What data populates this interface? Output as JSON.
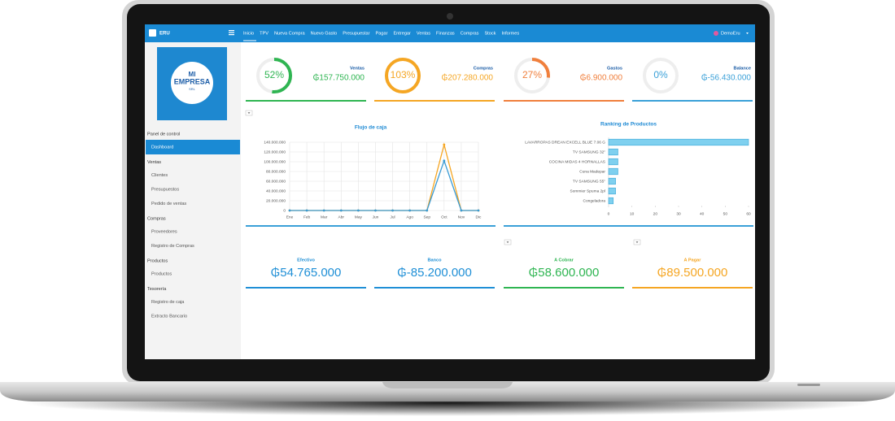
{
  "app": {
    "brand": "ERU",
    "nav": [
      "Inicio",
      "TPV",
      "Nueva Compra",
      "Nuevo Gasto",
      "Presupuestar",
      "Pagar",
      "Entregar",
      "Ventas",
      "Finanzas",
      "Compras",
      "Stock",
      "Informes"
    ],
    "user": "DemoEru"
  },
  "logo": {
    "line1": "MI",
    "line2": "EMPRESA",
    "line3": "SRL"
  },
  "sidebar": {
    "sections": [
      {
        "title": "Panel de control",
        "items": [
          "Dashboard"
        ]
      },
      {
        "title": "Ventas",
        "items": [
          "Clientes",
          "Presupuestos",
          "Pedido de ventas"
        ]
      },
      {
        "title": "Compras",
        "items": [
          "Proveedores",
          "Registro de Compras"
        ]
      },
      {
        "title": "Productos",
        "items": [
          "Productos"
        ]
      },
      {
        "title": "Tesorería",
        "items": [
          "Registro de caja",
          "Extracto Bancario"
        ]
      }
    ]
  },
  "kpis": [
    {
      "label": "Ventas",
      "percent": 52,
      "percent_label": "52%",
      "amount": "₲157.750.000",
      "color": "#2fb552"
    },
    {
      "label": "Compras",
      "percent": 103,
      "percent_label": "103%",
      "amount": "₲207.280.000",
      "color": "#f5a623"
    },
    {
      "label": "Gastos",
      "percent": 27,
      "percent_label": "27%",
      "amount": "₲6.900.000",
      "color": "#f07f3c"
    },
    {
      "label": "Balance",
      "percent": 0,
      "percent_label": "0%",
      "amount": "₲-56.430.000",
      "color": "#3aa0d8"
    }
  ],
  "chart_data": [
    {
      "type": "line",
      "title": "Flujo de caja",
      "categories": [
        "Ene",
        "Feb",
        "Mar",
        "Abr",
        "May",
        "Jun",
        "Jul",
        "Ago",
        "Sep",
        "Oct",
        "Nov",
        "Dic"
      ],
      "series": [
        {
          "color": "#f5a623",
          "values": [
            0,
            0,
            0,
            0,
            0,
            0,
            0,
            0,
            0,
            135000000,
            0,
            0
          ]
        },
        {
          "color": "#3a9bd5",
          "values": [
            0,
            0,
            0,
            0,
            0,
            0,
            0,
            0,
            0,
            102000000,
            0,
            0
          ]
        }
      ],
      "ylim": [
        0,
        140000000
      ],
      "yticks": [
        0,
        {
          "value": 20000000,
          "label": "20.000.000"
        },
        {
          "value": 40000000,
          "label": "40.000.000"
        },
        {
          "value": 60000000,
          "label": "60.000.000"
        },
        {
          "value": 80000000,
          "label": "80.000.000"
        },
        {
          "value": 100000000,
          "label": "100.000.000"
        },
        {
          "value": 120000000,
          "label": "120.000.000"
        },
        {
          "value": 140000000,
          "label": "140.000.000"
        }
      ],
      "grid": true
    },
    {
      "type": "hbar",
      "title": "Ranking de Productos",
      "categories": [
        "LAVARROPAS DREAN EXCELL BLUE 7.06 G",
        "TV SAMSUNG 32\"",
        "COCINA MIDAS 4 HORNALLAS",
        "Cuna Madepar",
        "TV SAMSUNG 55\"",
        "Sommier Spuma 2pl",
        "Congeladora"
      ],
      "values": [
        60,
        4,
        4,
        4,
        3,
        3,
        2
      ],
      "color": "#7fd0ef",
      "xlim": [
        0,
        60
      ],
      "xticks": [
        0,
        10,
        20,
        30,
        40,
        50,
        60
      ],
      "grid": false
    }
  ],
  "totals": [
    {
      "label": "Efectivo",
      "amount": "₲54.765.000",
      "color": "#1f8fd6"
    },
    {
      "label": "Banco",
      "amount": "₲-85.200.000",
      "color": "#1f8fd6"
    },
    {
      "label": "A Cobrar",
      "amount": "₲58.600.000",
      "color": "#2fb552"
    },
    {
      "label": "A Pagar",
      "amount": "₲89.500.000",
      "color": "#f5a623"
    }
  ]
}
